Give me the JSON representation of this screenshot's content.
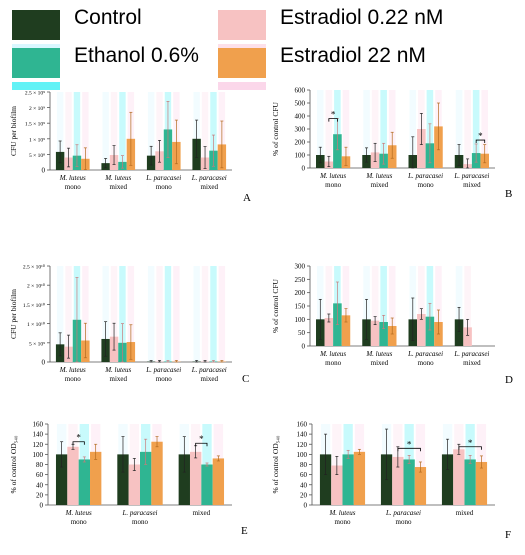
{
  "legend": [
    {
      "label": "Control",
      "color": "#1f3d1f",
      "glow": "#d9f7ff"
    },
    {
      "label": "Estradiol 0.22 nM",
      "color": "#f7c2c2",
      "glow": "#fde0ea"
    },
    {
      "label": "Ethanol 0.6%",
      "color": "#2fb592",
      "glow": "#62f2f6"
    },
    {
      "label": "Estradiol 22 nM",
      "color": "#f0a04d",
      "glow": "#fbd7ea"
    }
  ],
  "chart_data": [
    {
      "panel": "A",
      "type": "bar",
      "ylabel": "CFU per biofilm",
      "yticks": [
        "0",
        "5 × 10⁸",
        "1 × 10⁹",
        "1.5 × 10⁹",
        "2 × 10⁹",
        "2.5 × 10⁹"
      ],
      "ylim": [
        0,
        25
      ],
      "categories": [
        [
          "M. luteus",
          "mono"
        ],
        [
          "M. luteus",
          "mixed"
        ],
        [
          "L. paracasei",
          "mono"
        ],
        [
          "L. paracasei",
          "mixed"
        ]
      ],
      "series": [
        {
          "values": [
            5.8,
            2.2,
            4.6,
            10.0
          ],
          "errors": [
            3.5,
            1.5,
            3.0,
            6.0
          ]
        },
        {
          "values": [
            4.0,
            4.8,
            6.0,
            4.0
          ],
          "errors": [
            3.0,
            3.0,
            3.5,
            3.5
          ]
        },
        {
          "values": [
            4.6,
            2.6,
            13.0,
            6.2
          ],
          "errors": [
            3.5,
            2.0,
            9.0,
            5.0
          ]
        },
        {
          "values": [
            3.6,
            10.0,
            9.0,
            8.2
          ],
          "errors": [
            3.5,
            8.5,
            7.0,
            7.5
          ]
        }
      ],
      "annotations": []
    },
    {
      "panel": "B",
      "type": "bar",
      "ylabel": "% of control CFU",
      "yticks": [
        "0",
        "100",
        "200",
        "300",
        "400",
        "500",
        "600"
      ],
      "ylim": [
        0,
        600
      ],
      "categories": [
        [
          "M. luteus",
          "mono"
        ],
        [
          "M. luteus",
          "mixed"
        ],
        [
          "L. paracasei",
          "mono"
        ],
        [
          "L. paracasei",
          "mixed"
        ]
      ],
      "series": [
        {
          "values": [
            100,
            100,
            100,
            100
          ],
          "errors": [
            60,
            55,
            140,
            80
          ]
        },
        {
          "values": [
            50,
            120,
            300,
            30
          ],
          "errors": [
            40,
            70,
            120,
            40
          ]
        },
        {
          "values": [
            260,
            110,
            190,
            115
          ],
          "errors": [
            120,
            80,
            150,
            70
          ]
        },
        {
          "values": [
            90,
            175,
            320,
            110
          ],
          "errors": [
            70,
            100,
            180,
            70
          ]
        }
      ],
      "annotations": [
        {
          "label": "*",
          "group": 0,
          "from": 1,
          "to": 2,
          "y": 380
        },
        {
          "label": "*",
          "group": 3,
          "from": 2,
          "to": 3,
          "y": 215
        }
      ]
    },
    {
      "panel": "C",
      "type": "bar",
      "ylabel": "CFU per biofilm",
      "yticks": [
        "0",
        "5 × 10⁹",
        "1 × 10¹⁰",
        "1.5 × 10¹⁰",
        "2 × 10¹⁰",
        "2.5 × 10¹⁰"
      ],
      "ylim": [
        0,
        25
      ],
      "categories": [
        [
          "M. luteus",
          "mono"
        ],
        [
          "M. luteus",
          "mixed"
        ],
        [
          "L. paracasei",
          "mono"
        ],
        [
          "L. paracasei",
          "mixed"
        ]
      ],
      "series": [
        {
          "values": [
            4.6,
            6.0,
            0.1,
            0.1
          ],
          "errors": [
            3.0,
            4.5,
            0.3,
            0.3
          ]
        },
        {
          "values": [
            4.0,
            6.6,
            0.1,
            0.1
          ],
          "errors": [
            3.0,
            3.5,
            0.3,
            0.3
          ]
        },
        {
          "values": [
            11.0,
            5.0,
            0.1,
            0.1
          ],
          "errors": [
            11.0,
            5.0,
            0.3,
            0.3
          ]
        },
        {
          "values": [
            5.6,
            5.2,
            0.1,
            0.1
          ],
          "errors": [
            4.5,
            4.5,
            0.3,
            0.3
          ]
        }
      ],
      "annotations": []
    },
    {
      "panel": "D",
      "type": "bar",
      "ylabel": "% of control CFU",
      "yticks": [
        "0",
        "50",
        "100",
        "150",
        "200",
        "250",
        "300"
      ],
      "ylim": [
        0,
        300
      ],
      "categories": [
        [
          "M. luteus",
          "mono"
        ],
        [
          "M. luteus",
          "mixed"
        ],
        [
          "L. paracasei",
          "mono"
        ],
        [
          "L. paracasei",
          "mixed"
        ]
      ],
      "series": [
        {
          "values": [
            100,
            100,
            100,
            100
          ],
          "errors": [
            75,
            75,
            80,
            45
          ]
        },
        {
          "values": [
            105,
            95,
            120,
            70
          ],
          "errors": [
            15,
            15,
            20,
            30
          ]
        },
        {
          "values": [
            160,
            90,
            110,
            0
          ],
          "errors": [
            80,
            25,
            50,
            0
          ]
        },
        {
          "values": [
            115,
            75,
            90,
            0
          ],
          "errors": [
            25,
            30,
            45,
            0
          ]
        }
      ],
      "annotations": []
    },
    {
      "panel": "E",
      "type": "bar",
      "ylabel": "% of control OD₅₄₀",
      "yticks": [
        "0",
        "20",
        "40",
        "60",
        "80",
        "100",
        "120",
        "140",
        "160"
      ],
      "ylim": [
        0,
        160
      ],
      "categories": [
        [
          "M. luteus",
          "mono"
        ],
        [
          "L. paracasei",
          "mono"
        ],
        [
          "mixed",
          ""
        ]
      ],
      "series": [
        {
          "values": [
            100,
            100,
            100
          ],
          "errors": [
            25,
            35,
            35
          ]
        },
        {
          "values": [
            115,
            80,
            105
          ],
          "errors": [
            5,
            12,
            12
          ]
        },
        {
          "values": [
            90,
            105,
            80
          ],
          "errors": [
            5,
            25,
            3
          ]
        },
        {
          "values": [
            105,
            125,
            92
          ],
          "errors": [
            15,
            10,
            5
          ]
        }
      ],
      "annotations": [
        {
          "label": "*",
          "group": 0,
          "from": 1,
          "to": 2,
          "y": 125
        },
        {
          "label": "*",
          "group": 2,
          "from": 1,
          "to": 2,
          "y": 122
        }
      ]
    },
    {
      "panel": "F",
      "type": "bar",
      "ylabel": "% of control OD₅₄₀",
      "yticks": [
        "0",
        "20",
        "40",
        "60",
        "80",
        "100",
        "120",
        "140",
        "160"
      ],
      "ylim": [
        0,
        160
      ],
      "categories": [
        [
          "M. luteus",
          "mono"
        ],
        [
          "L. paracasei",
          "mono"
        ],
        [
          "mixed",
          ""
        ]
      ],
      "series": [
        {
          "values": [
            100,
            100,
            100
          ],
          "errors": [
            40,
            50,
            30
          ]
        },
        {
          "values": [
            78,
            95,
            110
          ],
          "errors": [
            18,
            20,
            10
          ]
        },
        {
          "values": [
            100,
            90,
            90
          ],
          "errors": [
            8,
            8,
            8
          ]
        },
        {
          "values": [
            105,
            75,
            85
          ],
          "errors": [
            5,
            10,
            12
          ]
        }
      ],
      "annotations": [
        {
          "label": "*",
          "group": 1,
          "from": 1,
          "to": 3,
          "y": 112
        },
        {
          "label": "*",
          "group": 2,
          "from": 1,
          "to": 3,
          "y": 115
        }
      ]
    }
  ]
}
